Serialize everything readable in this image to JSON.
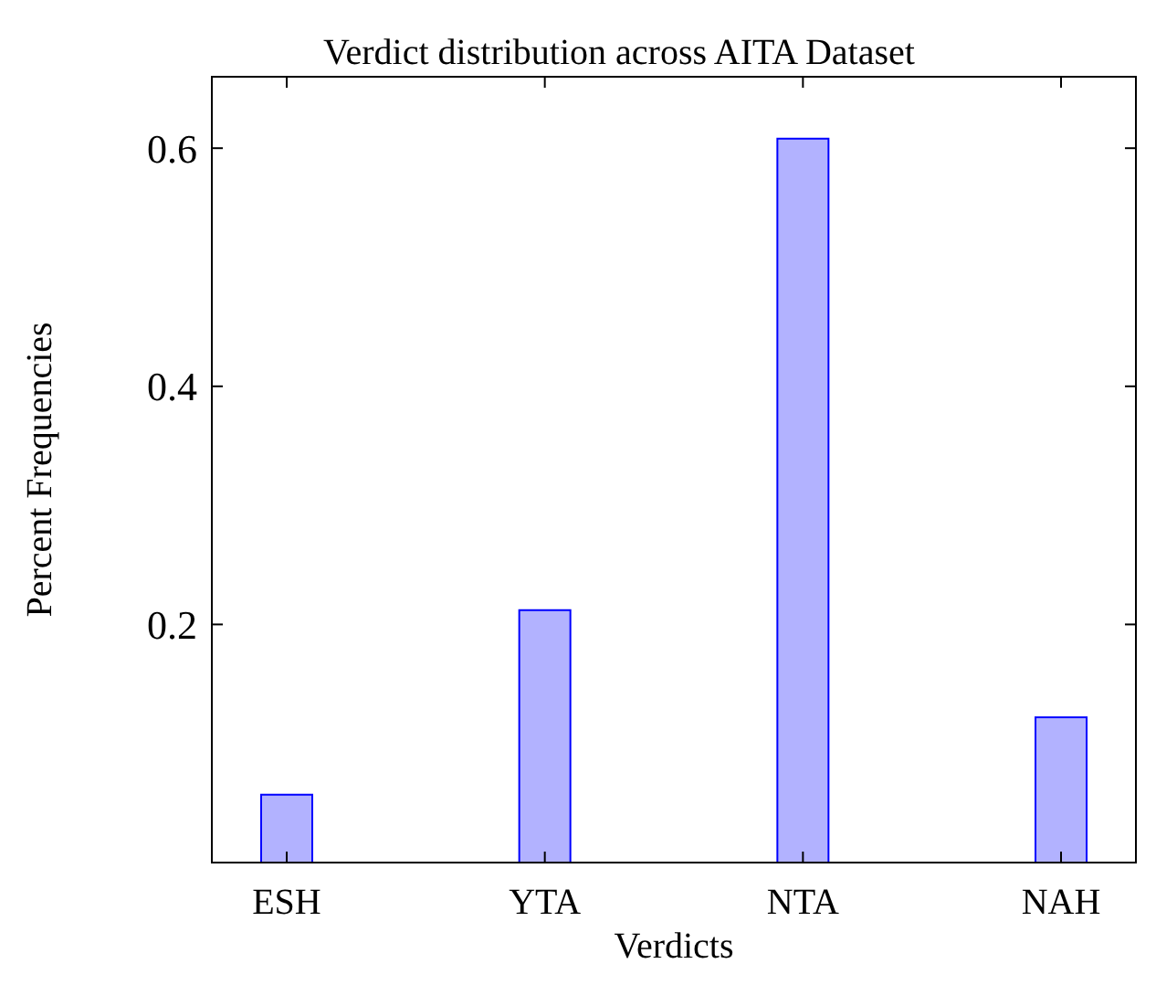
{
  "chart_data": {
    "type": "bar",
    "title": "Verdict distribution across AITA Dataset",
    "xlabel": "Verdicts",
    "ylabel": "Percent Frequencies",
    "categories": [
      "ESH",
      "YTA",
      "NTA",
      "NAH"
    ],
    "series": [
      {
        "color": "#0000ff",
        "values": [
          0.057,
          0.212,
          0.608,
          0.122
        ]
      }
    ],
    "ylim": [
      0,
      0.66
    ],
    "yticks": [
      0.2,
      0.4,
      0.6
    ],
    "grid": false
  }
}
